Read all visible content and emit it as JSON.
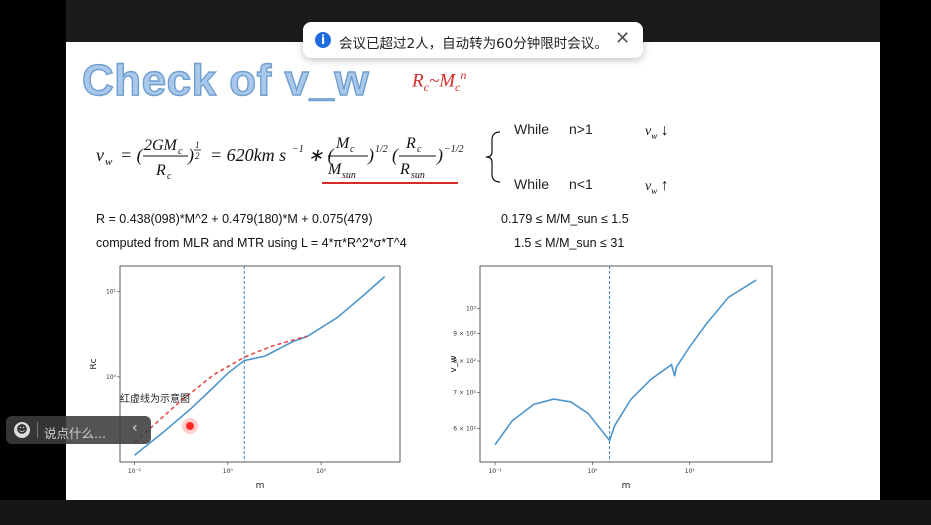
{
  "notification": {
    "message": "会议已超过2人，自动转为60分钟限时会议。",
    "info_icon": "i",
    "close_icon": "✕"
  },
  "slide": {
    "title": "Check of v_w",
    "relation": {
      "R": "R",
      "R_sub": "c",
      "tilde": "~",
      "M": "M",
      "M_sub": "c",
      "exp": "n"
    },
    "formula": {
      "lhs": "v",
      "lhs_sub": "w",
      "eq1": "= (",
      "frac1_num": "2GM",
      "frac1_num_sub": "c",
      "frac1_den": "R",
      "frac1_den_sub": "c",
      "half_num": "1",
      "half_den": "2",
      "eq2": "= 620km s",
      "eq2_exp": "−1",
      "star": "∗ (",
      "frac2_num": "M",
      "frac2_num_sub": "c",
      "frac2_den": "M",
      "frac2_den_sub": "sun",
      "exp2": "1/2",
      "frac3_num": "R",
      "frac3_num_sub": "c",
      "frac3_den": "R",
      "frac3_den_sub": "sun",
      "exp3": "−1/2"
    },
    "cases": [
      {
        "word": "While",
        "cond": "n>1",
        "arrow": "↓"
      },
      {
        "word": "While",
        "cond": "n<1",
        "arrow": "↑"
      }
    ],
    "vw_symbol": "v",
    "vw_sub": "w",
    "eq_line1": "R = 0.438(098)*M^2 + 0.479(180)*M + 0.075(479)",
    "eq_line2": "computed from MLR and MTR using L = 4*π*R^2*σ*T^4",
    "range1": "0.179 ≤ M/M_sun ≤ 1.5",
    "range2": "1.5 ≤ M/M_sun ≤ 31",
    "annotation": "红虚线为示意图"
  },
  "chart_data": [
    {
      "type": "line",
      "xlabel": "m",
      "ylabel": "Rc",
      "xscale": "log",
      "yscale": "log",
      "xticks": [
        "10⁻¹",
        "10⁰",
        "10¹"
      ],
      "yticks": [
        "10¹",
        "10⁰"
      ],
      "vline_x": 1.5,
      "series": [
        {
          "style": "solid",
          "color": "#4f96cc",
          "x": [
            0.1,
            0.2,
            0.4,
            0.7,
            1.0,
            1.5,
            2.5,
            5.0,
            7.0,
            15.0,
            30.0,
            48.0
          ],
          "y": [
            0.12,
            0.22,
            0.42,
            0.75,
            1.1,
            1.55,
            1.75,
            2.6,
            2.95,
            5.0,
            9.5,
            15.0
          ]
        },
        {
          "style": "dashed",
          "color": "#e84b4b",
          "x": [
            0.1,
            0.3,
            0.7,
            1.5,
            3.0,
            7.0
          ],
          "y": [
            0.17,
            0.5,
            1.05,
            1.7,
            2.3,
            3.0
          ]
        }
      ]
    },
    {
      "type": "line",
      "xlabel": "m",
      "ylabel": "v_w",
      "xscale": "log",
      "yscale": "log",
      "xticks": [
        "10⁻¹",
        "10⁰",
        "10¹"
      ],
      "yticks": [
        "10³",
        "9 × 10²",
        "8 × 10²",
        "7 × 10²",
        "6 × 10²"
      ],
      "vline_x": 1.5,
      "series": [
        {
          "style": "solid",
          "color": "#4f96cc",
          "x": [
            0.1,
            0.15,
            0.25,
            0.4,
            0.6,
            0.9,
            1.2,
            1.5,
            1.7,
            2.5,
            4.0,
            6.5,
            7.0,
            7.3,
            10,
            15,
            25,
            48
          ],
          "y": [
            560,
            620,
            665,
            680,
            672,
            640,
            600,
            570,
            608,
            680,
            740,
            788,
            750,
            780,
            850,
            940,
            1050,
            1130
          ]
        }
      ]
    }
  ]
}
